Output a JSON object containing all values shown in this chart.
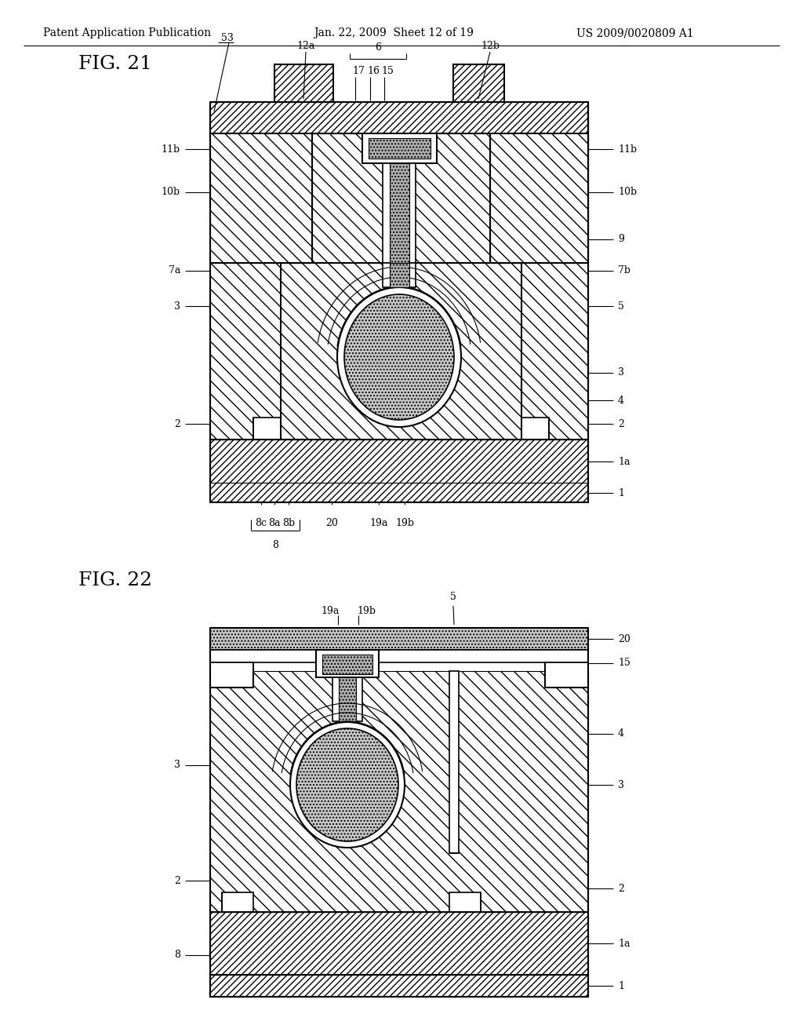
{
  "header_left": "Patent Application Publication",
  "header_mid": "Jan. 22, 2009  Sheet 12 of 19",
  "header_right": "US 2009/0020809 A1",
  "fig21_label": "FIG. 21",
  "fig22_label": "FIG. 22",
  "bg_color": "#ffffff"
}
